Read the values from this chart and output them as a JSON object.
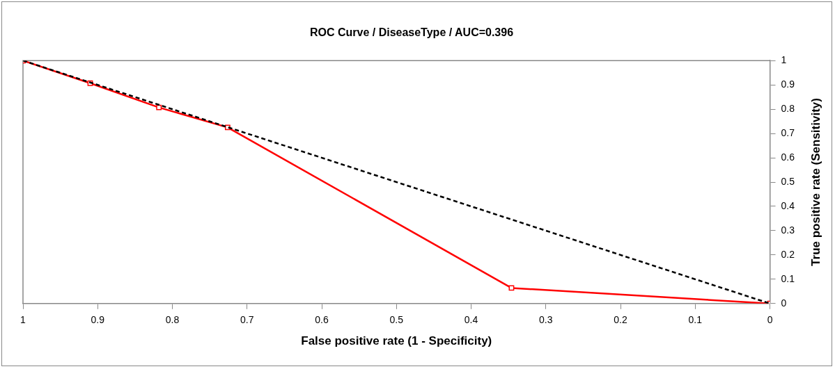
{
  "chart_data": {
    "type": "line",
    "title": "ROC Curve / DiseaseType / AUC=0.396",
    "xlabel": "False positive rate (1 - Specificity)",
    "ylabel": "True positive rate (Sensitivity)",
    "xlim": [
      1,
      0
    ],
    "xticks": [
      1,
      0.9,
      0.8,
      0.7,
      0.6,
      0.5,
      0.4,
      0.3,
      0.2,
      0.1,
      0
    ],
    "ylim": [
      0,
      1
    ],
    "yticks": [
      0,
      0.1,
      0.2,
      0.3,
      0.4,
      0.5,
      0.6,
      0.7,
      0.8,
      0.9,
      1
    ],
    "grid": false,
    "legend": false,
    "series": [
      {
        "color": "#ff0000",
        "marker": "square",
        "line_style": "solid",
        "x": [
          1,
          0.91,
          0.818,
          0.726,
          0.346,
          0
        ],
        "values": [
          1,
          0.907,
          0.807,
          0.725,
          0.064,
          0
        ]
      },
      {
        "color": "#000000",
        "marker": "none",
        "line_style": "dashed",
        "x": [
          1,
          0
        ],
        "values": [
          1,
          0
        ]
      }
    ]
  }
}
